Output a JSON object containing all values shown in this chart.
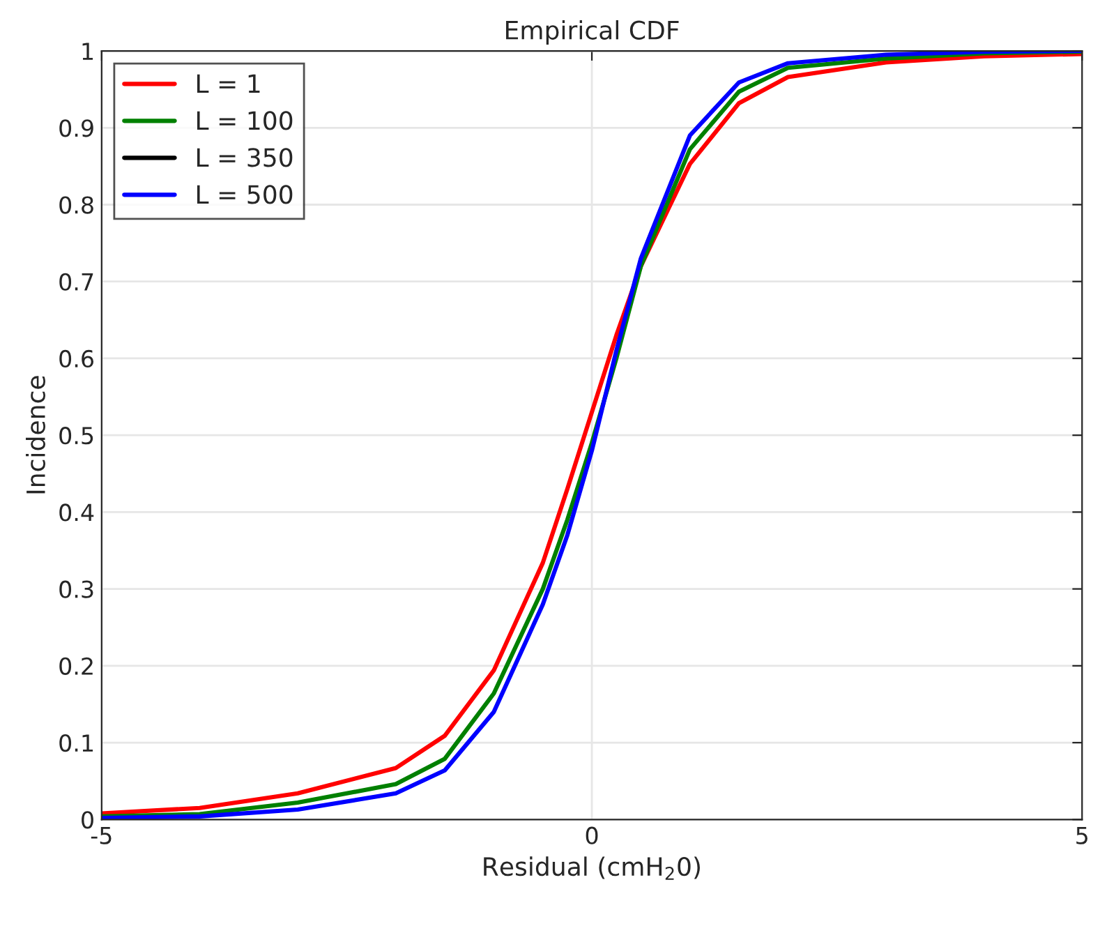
{
  "chart_data": {
    "type": "line",
    "title": "Empirical CDF",
    "xlabel": "Residual (cmH$_{2}$0)",
    "ylabel": "Incidence",
    "x": [
      -5,
      -4,
      -3,
      -2,
      -1.5,
      -1,
      -0.5,
      -0.25,
      0,
      0.25,
      0.5,
      1,
      1.5,
      2,
      3,
      4,
      5
    ],
    "series": [
      {
        "name": "L = 1",
        "color": "#ff0000",
        "values": [
          0.008,
          0.015,
          0.034,
          0.067,
          0.109,
          0.194,
          0.334,
          0.43,
          0.53,
          0.63,
          0.72,
          0.853,
          0.932,
          0.966,
          0.985,
          0.993,
          0.996
        ]
      },
      {
        "name": "L = 100",
        "color": "#008000",
        "values": [
          0.004,
          0.007,
          0.022,
          0.046,
          0.079,
          0.164,
          0.3,
          0.39,
          0.49,
          0.6,
          0.72,
          0.872,
          0.947,
          0.978,
          0.99,
          0.997,
          0.999
        ]
      },
      {
        "name": "L = 350",
        "color": "#000000",
        "values": [
          null,
          null,
          null,
          null,
          null,
          null,
          null,
          null,
          null,
          null,
          null,
          null,
          null,
          null,
          null,
          null,
          null
        ]
      },
      {
        "name": "L = 500",
        "color": "#0000ff",
        "values": [
          0.002,
          0.004,
          0.013,
          0.034,
          0.064,
          0.14,
          0.28,
          0.37,
          0.48,
          0.61,
          0.73,
          0.89,
          0.959,
          0.984,
          0.995,
          0.999,
          1
        ]
      }
    ],
    "xlim": [
      -5,
      5
    ],
    "xticks": [
      -5,
      0,
      5
    ],
    "ylim": [
      0,
      1
    ],
    "yticks": [
      0,
      0.1,
      0.2,
      0.3,
      0.4,
      0.5,
      0.6,
      0.7,
      0.8,
      0.9,
      1
    ],
    "grid": true,
    "legend": "top left",
    "line_style": "solid",
    "marker": "none"
  }
}
